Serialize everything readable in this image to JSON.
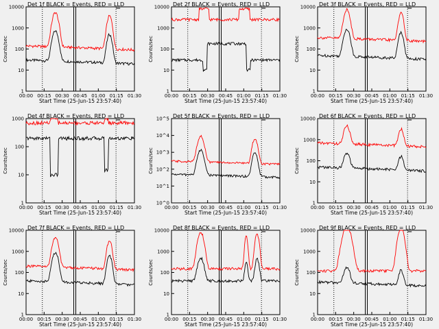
{
  "chart_data": [
    {
      "type": "line",
      "title": "Det 1f BLACK = Events, RED = LLD",
      "xlabel": "Start Time (25-Jun-15 23:57:40)",
      "ylabel": "Counts/sec",
      "scale": "log",
      "ylim": [
        1,
        10000
      ],
      "yticks": [
        "1",
        "10",
        "100",
        "1000",
        "10000"
      ],
      "xticks": [
        "00:00",
        "00:15",
        "00:30",
        "00:45",
        "01:00",
        "01:15",
        "01:30"
      ],
      "series": [
        {
          "name": "Events",
          "color": "#000000",
          "profile": "double_peak",
          "base": 30,
          "peak": 800
        },
        {
          "name": "LLD",
          "color": "#ff0000",
          "profile": "double_peak",
          "base": 140,
          "peak": 6000
        }
      ]
    },
    {
      "type": "line",
      "title": "Det 2f BLACK = Events, RED = LLD",
      "xlabel": "Start Time (25-Jun-15 23:57:40)",
      "ylabel": "Counts/sec",
      "scale": "log",
      "ylim": [
        1,
        10000
      ],
      "yticks": [
        "1",
        "10",
        "100",
        "1000",
        "10000"
      ],
      "xticks": [
        "00:00",
        "00:15",
        "00:30",
        "00:45",
        "01:00",
        "01:15",
        "01:30"
      ],
      "series": [
        {
          "name": "Events",
          "color": "#000000",
          "profile": "plateau",
          "base": 30,
          "peak": 180,
          "dip": 8
        },
        {
          "name": "LLD",
          "color": "#ff0000",
          "profile": "plateau_high",
          "base": 2500,
          "peak": 8000
        }
      ]
    },
    {
      "type": "line",
      "title": "Det 3f BLACK = Events, RED = LLD",
      "xlabel": "Start Time (25-Jun-15 23:57:40)",
      "ylabel": "Counts/sec",
      "scale": "log",
      "ylim": [
        1,
        10000
      ],
      "yticks": [
        "1",
        "10",
        "100",
        "1000",
        "10000"
      ],
      "xticks": [
        "00:00",
        "00:15",
        "00:30",
        "00:45",
        "01:00",
        "01:15",
        "01:30"
      ],
      "series": [
        {
          "name": "Events",
          "color": "#000000",
          "profile": "double_peak",
          "base": 50,
          "peak": 1000
        },
        {
          "name": "LLD",
          "color": "#ff0000",
          "profile": "double_peak",
          "base": 350,
          "peak": 8000
        }
      ]
    },
    {
      "type": "line",
      "title": "Det 4f BLACK = Events, RED = LLD",
      "xlabel": "Start Time (25-Jun-15 23:57:40)",
      "ylabel": "Counts/sec",
      "scale": "log",
      "ylim": [
        1,
        1000
      ],
      "yticks": [
        "1",
        "10",
        "100",
        "1000"
      ],
      "xticks": [
        "00:00",
        "00:15",
        "00:30",
        "00:45",
        "01:00",
        "01:15",
        "01:30"
      ],
      "series": [
        {
          "name": "Events",
          "color": "#000000",
          "profile": "double_dip",
          "base": 200,
          "peak": 10
        },
        {
          "name": "LLD",
          "color": "#ff0000",
          "profile": "flat_high",
          "base": 700,
          "peak": 1000
        }
      ]
    },
    {
      "type": "line",
      "title": "Det 5f BLACK = Events, RED = LLD",
      "xlabel": "Start Time (25-Jun-15 23:57:40)",
      "ylabel": "Counts/sec",
      "scale": "log",
      "ylim": [
        1,
        100000
      ],
      "yticks": [
        "10^0",
        "10^1",
        "10^2",
        "10^3",
        "10^4",
        "10^5"
      ],
      "xticks": [
        "00:00",
        "00:15",
        "00:30",
        "00:45",
        "01:00",
        "01:15",
        "01:30"
      ],
      "series": [
        {
          "name": "Events",
          "color": "#000000",
          "profile": "double_peak",
          "base": 50,
          "peak": 1500
        },
        {
          "name": "LLD",
          "color": "#ff0000",
          "profile": "double_peak",
          "base": 300,
          "peak": 10000
        }
      ]
    },
    {
      "type": "line",
      "title": "Det 6f BLACK = Events, RED = LLD",
      "xlabel": "Start Time (25-Jun-15 23:57:40)",
      "ylabel": "Counts/sec",
      "scale": "log",
      "ylim": [
        1,
        10000
      ],
      "yticks": [
        "1",
        "10",
        "100",
        "1000",
        "10000"
      ],
      "xticks": [
        "00:00",
        "00:15",
        "00:30",
        "00:45",
        "01:00",
        "01:15",
        "01:30"
      ],
      "series": [
        {
          "name": "Events",
          "color": "#000000",
          "profile": "double_peak",
          "base": 50,
          "peak": 250
        },
        {
          "name": "LLD",
          "color": "#ff0000",
          "profile": "double_peak",
          "base": 700,
          "peak": 5000
        }
      ]
    },
    {
      "type": "line",
      "title": "Det 7f BLACK = Events, RED = LLD",
      "xlabel": "Start Time (25-Jun-15 23:57:40)",
      "ylabel": "Counts/sec",
      "scale": "log",
      "ylim": [
        1,
        10000
      ],
      "yticks": [
        "1",
        "10",
        "100",
        "1000",
        "10000"
      ],
      "xticks": [
        "00:00",
        "00:15",
        "00:30",
        "00:45",
        "01:00",
        "01:15",
        "01:30"
      ],
      "series": [
        {
          "name": "Events",
          "color": "#000000",
          "profile": "double_peak",
          "base": 40,
          "peak": 1000
        },
        {
          "name": "LLD",
          "color": "#ff0000",
          "profile": "double_peak",
          "base": 200,
          "peak": 5000
        }
      ]
    },
    {
      "type": "line",
      "title": "Det 8f BLACK = Events, RED = LLD",
      "xlabel": "Start Time (25-Jun-15 23:57:40)",
      "ylabel": "Counts/sec",
      "scale": "log",
      "ylim": [
        1,
        10000
      ],
      "yticks": [
        "1",
        "10",
        "100",
        "1000",
        "10000"
      ],
      "xticks": [
        "00:00",
        "00:15",
        "00:30",
        "00:45",
        "01:00",
        "01:15",
        "01:30"
      ],
      "series": [
        {
          "name": "Events",
          "color": "#000000",
          "profile": "triple_peak",
          "base": 40,
          "peak": 500
        },
        {
          "name": "LLD",
          "color": "#ff0000",
          "profile": "triple_peak",
          "base": 150,
          "peak": 8000
        }
      ]
    },
    {
      "type": "line",
      "title": "Det 9f BLACK = Events, RED = LLD",
      "xlabel": "Start Time (25-Jun-15 23:57:40)",
      "ylabel": "Counts/sec",
      "scale": "log",
      "ylim": [
        1,
        10000
      ],
      "yticks": [
        "1",
        "10",
        "100",
        "1000",
        "10000"
      ],
      "xticks": [
        "00:00",
        "00:15",
        "00:30",
        "00:45",
        "01:00",
        "01:15",
        "01:30"
      ],
      "series": [
        {
          "name": "Events",
          "color": "#000000",
          "profile": "double_peak",
          "base": 35,
          "peak": 200
        },
        {
          "name": "LLD",
          "color": "#ff0000",
          "profile": "double_peak_wide",
          "base": 120,
          "peak": 15000
        }
      ]
    }
  ]
}
